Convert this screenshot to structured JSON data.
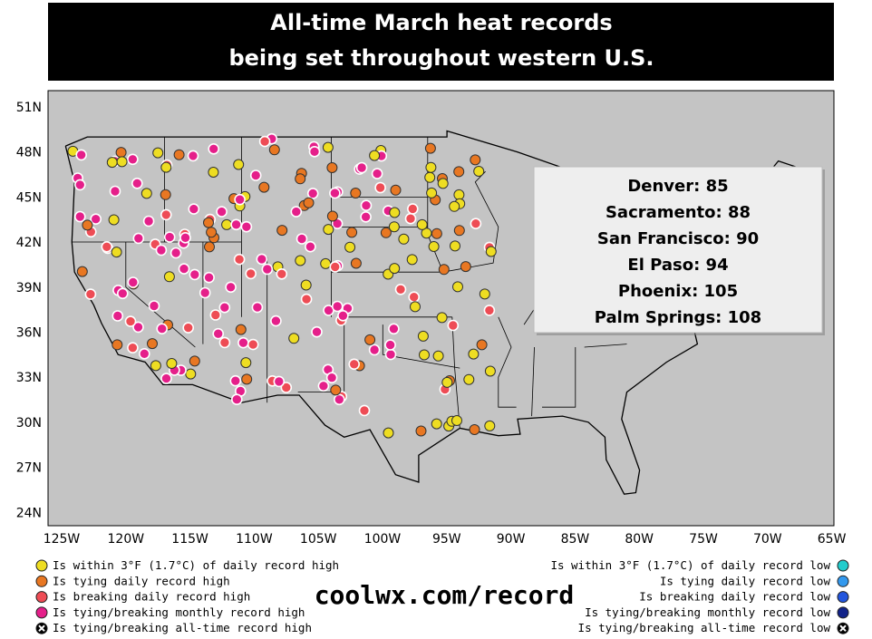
{
  "header": {
    "title": [
      "All-time March heat records",
      "being set throughout western U.S."
    ]
  },
  "callout": [
    "Denver: 85",
    "Sacramento: 88",
    "San Francisco: 90",
    "El Paso: 94",
    "Phoenix: 105",
    "Palm Springs: 108"
  ],
  "map": {
    "lat_labels": [
      "51N",
      "48N",
      "45N",
      "42N",
      "39N",
      "36N",
      "33N",
      "30N",
      "27N",
      "24N"
    ],
    "lon_labels": [
      "125W",
      "120W",
      "115W",
      "110W",
      "105W",
      "100W",
      "95W",
      "90W",
      "85W",
      "80W",
      "75W",
      "70W",
      "65W"
    ]
  },
  "legend": {
    "left": [
      "Is within 3°F (1.7°C) of daily record high",
      "Is tying daily record high",
      "Is breaking daily record high",
      "Is tying/breaking monthly record high",
      "Is tying/breaking all-time record high"
    ],
    "right": [
      "Is within 3°F (1.7°C) of daily record low",
      "Is tying daily record low",
      "Is breaking daily record low",
      "Is tying/breaking monthly record low",
      "Is tying/breaking all-time record low"
    ]
  },
  "source": "coolwx.com/record"
}
